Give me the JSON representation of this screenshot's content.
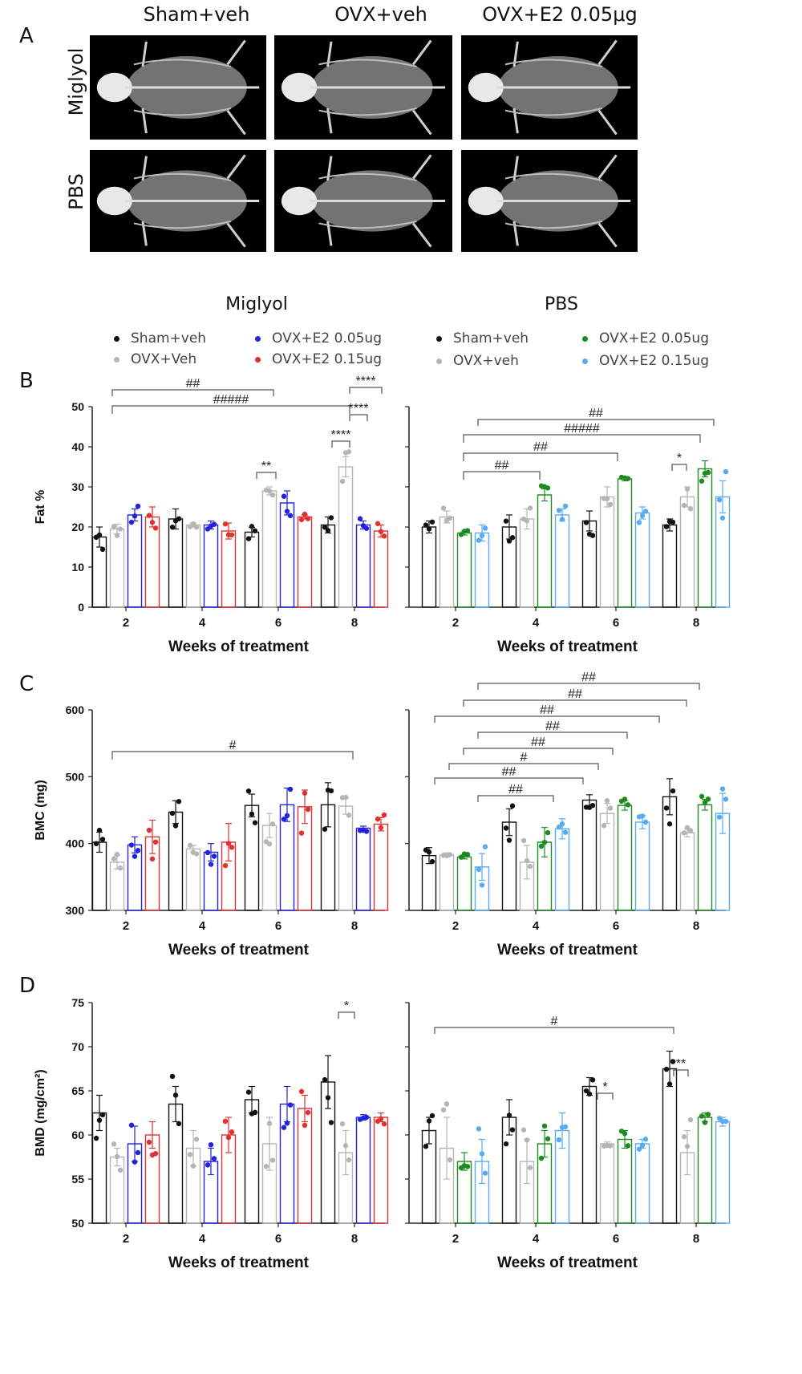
{
  "panel_labels": {
    "a": "A",
    "b": "B",
    "c": "C",
    "d": "D"
  },
  "xray": {
    "columns": [
      "Sham+veh",
      "OVX+veh",
      "OVX+E2 0.05μg"
    ],
    "rows": [
      "Miglyol",
      "PBS"
    ]
  },
  "sections": {
    "left": "Miglyol",
    "right": "PBS"
  },
  "legend_left": [
    "Sham+veh",
    "OVX+Veh",
    "OVX+E2 0.05ug",
    "OVX+E2 0.15ug"
  ],
  "legend_right": [
    "Sham+veh",
    "OVX+veh",
    "OVX+E2 0.05ug",
    "OVX+E2 0.15ug"
  ],
  "colors": {
    "sham": "#111111",
    "ovx": "#b5b5b5",
    "e2_low_miglyol": "#2222dd",
    "e2_high_miglyol": "#e03030",
    "e2_low_pbs": "#1f8a1f",
    "e2_high_pbs": "#5aaaf0"
  },
  "chart_data": [
    {
      "id": "fat-miglyol",
      "type": "bar",
      "ylabel": "Fat %",
      "xlabel": "Weeks of treatment",
      "ylim": [
        0,
        50
      ],
      "yticks": [
        0,
        10,
        20,
        30,
        40,
        50
      ],
      "categories": [
        "2",
        "4",
        "6",
        "8"
      ],
      "series": [
        {
          "name": "Sham+veh",
          "values": [
            17.5,
            22,
            18.7,
            20.5
          ],
          "errors": [
            2.5,
            2.5,
            1.2,
            2
          ]
        },
        {
          "name": "OVX+Veh",
          "values": [
            19.5,
            20.5,
            29,
            35
          ],
          "errors": [
            1.2,
            0.5,
            1,
            2.5
          ]
        },
        {
          "name": "OVX+E2 0.05ug",
          "values": [
            23,
            20.5,
            26,
            20.5
          ],
          "errors": [
            1.5,
            1,
            3,
            1
          ]
        },
        {
          "name": "OVX+E2 0.15ug",
          "values": [
            22.5,
            19,
            22.5,
            19
          ],
          "errors": [
            2.5,
            2,
            0.5,
            1.5
          ]
        }
      ],
      "annotations": [
        "##",
        "#####",
        "**",
        "****",
        "****",
        "****"
      ]
    },
    {
      "id": "fat-pbs",
      "type": "bar",
      "ylabel": "",
      "xlabel": "Weeks of treatment",
      "ylim": [
        0,
        50
      ],
      "yticks": [
        0,
        10,
        20,
        30,
        40,
        50
      ],
      "categories": [
        "2",
        "4",
        "6",
        "8"
      ],
      "series": [
        {
          "name": "Sham+veh",
          "values": [
            20,
            20,
            21.5,
            20.5
          ],
          "errors": [
            1.5,
            3,
            2.5,
            1.5
          ]
        },
        {
          "name": "OVX+veh",
          "values": [
            22.5,
            22,
            27.5,
            27.5
          ],
          "errors": [
            1.5,
            2.5,
            2.5,
            2.5
          ]
        },
        {
          "name": "OVX+E2 0.05ug",
          "values": [
            18.5,
            28,
            32,
            34.5
          ],
          "errors": [
            0.5,
            1.5,
            0.5,
            2
          ]
        },
        {
          "name": "OVX+E2 0.15ug",
          "values": [
            18.5,
            23,
            23.5,
            27.5
          ],
          "errors": [
            2,
            1.5,
            1.5,
            4
          ]
        }
      ],
      "annotations": [
        "##",
        "#####",
        "##",
        "##",
        "*"
      ]
    },
    {
      "id": "bmc-miglyol",
      "type": "bar",
      "ylabel": "BMC  (mg)",
      "xlabel": "Weeks of treatment",
      "ylim": [
        300,
        600
      ],
      "yticks": [
        300,
        400,
        500,
        600
      ],
      "categories": [
        "2",
        "4",
        "6",
        "8"
      ],
      "series": [
        {
          "name": "Sham+veh",
          "values": [
            402,
            447,
            457,
            458
          ],
          "errors": [
            15,
            17,
            17,
            33
          ]
        },
        {
          "name": "OVX+Veh",
          "values": [
            372,
            392,
            427,
            456
          ],
          "errors": [
            10,
            5,
            18,
            12
          ]
        },
        {
          "name": "OVX+E2 0.05ug",
          "values": [
            398,
            387,
            458,
            423
          ],
          "errors": [
            12,
            13,
            25,
            3
          ]
        },
        {
          "name": "OVX+E2 0.15ug",
          "values": [
            410,
            402,
            455,
            429
          ],
          "errors": [
            25,
            28,
            25,
            10
          ]
        }
      ],
      "annotations": [
        "#"
      ]
    },
    {
      "id": "bmc-pbs",
      "type": "bar",
      "ylabel": "",
      "xlabel": "Weeks of treatment",
      "ylim": [
        300,
        600
      ],
      "yticks": [
        300,
        400,
        500,
        600
      ],
      "categories": [
        "2",
        "4",
        "6",
        "8"
      ],
      "series": [
        {
          "name": "Sham+veh",
          "values": [
            382,
            432,
            465,
            470
          ],
          "errors": [
            12,
            20,
            8,
            27
          ]
        },
        {
          "name": "OVX+veh",
          "values": [
            383,
            372,
            445,
            416
          ],
          "errors": [
            3,
            25,
            15,
            6
          ]
        },
        {
          "name": "OVX+E2 0.05ug",
          "values": [
            380,
            402,
            457,
            458
          ],
          "errors": [
            3,
            22,
            7,
            8
          ]
        },
        {
          "name": "OVX+E2 0.15ug",
          "values": [
            365,
            422,
            432,
            445
          ],
          "errors": [
            20,
            15,
            10,
            30
          ]
        }
      ],
      "annotations": [
        "##",
        "##",
        "##",
        "##",
        "##",
        "#",
        "##",
        "##"
      ]
    },
    {
      "id": "bmd-miglyol",
      "type": "bar",
      "ylabel": "BMD (mg/cm²)",
      "xlabel": "Weeks of treatment",
      "ylim": [
        50,
        75
      ],
      "yticks": [
        50,
        55,
        60,
        65,
        70,
        75
      ],
      "categories": [
        "2",
        "4",
        "6",
        "8"
      ],
      "series": [
        {
          "name": "Sham+veh",
          "values": [
            62.5,
            63.5,
            64,
            66
          ],
          "errors": [
            2,
            2,
            1.5,
            3
          ]
        },
        {
          "name": "OVX+Veh",
          "values": [
            57.5,
            58.5,
            59,
            58
          ],
          "errors": [
            1,
            2,
            3,
            2.5
          ]
        },
        {
          "name": "OVX+E2 0.05ug",
          "values": [
            59,
            57,
            63.5,
            62
          ],
          "errors": [
            2,
            1.5,
            2,
            0.3
          ]
        },
        {
          "name": "OVX+E2 0.15ug",
          "values": [
            60,
            60,
            63,
            62
          ],
          "errors": [
            1.5,
            2,
            1.5,
            0.5
          ]
        }
      ],
      "annotations": [
        "*"
      ]
    },
    {
      "id": "bmd-pbs",
      "type": "bar",
      "ylabel": "",
      "xlabel": "Weeks of treatment",
      "ylim": [
        50,
        75
      ],
      "yticks": [
        50,
        55,
        60,
        65,
        70,
        75
      ],
      "categories": [
        "2",
        "4",
        "6",
        "8"
      ],
      "series": [
        {
          "name": "Sham+veh",
          "values": [
            60.5,
            62,
            65.5,
            67.5
          ],
          "errors": [
            1.5,
            2,
            1,
            2
          ]
        },
        {
          "name": "OVX+veh",
          "values": [
            58.5,
            57,
            59,
            58
          ],
          "errors": [
            3.5,
            2.5,
            0.2,
            2.5
          ]
        },
        {
          "name": "OVX+E2 0.05ug",
          "values": [
            57,
            59,
            59.5,
            62
          ],
          "errors": [
            1,
            1.5,
            1,
            0.5
          ]
        },
        {
          "name": "OVX+E2 0.15ug",
          "values": [
            57,
            60.5,
            59,
            61.5
          ],
          "errors": [
            2.5,
            2,
            0.5,
            0.5
          ]
        }
      ],
      "annotations": [
        "#",
        "*",
        "**"
      ]
    }
  ]
}
